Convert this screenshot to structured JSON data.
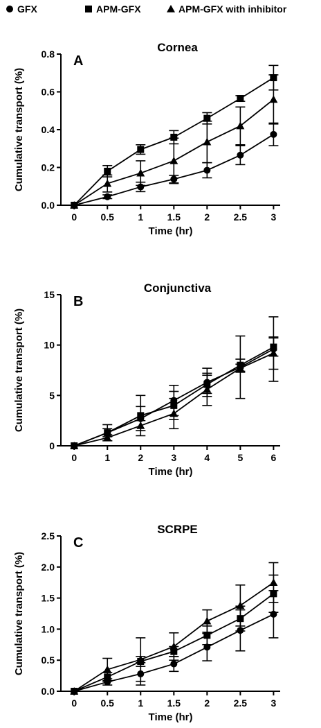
{
  "legend": {
    "placement": "top",
    "entries": [
      {
        "label": "GFX",
        "marker": "circle"
      },
      {
        "label": "APM-GFX",
        "marker": "square"
      },
      {
        "label": "APM-GFX with inhibitor",
        "marker": "triangle"
      }
    ]
  },
  "chart_data": [
    {
      "type": "line",
      "panel_letter": "A",
      "title": "Cornea",
      "xlabel": "Time (hr)",
      "ylabel": "Cumulative transport (%)",
      "x": [
        0,
        0.5,
        1,
        1.5,
        2,
        2.5,
        3
      ],
      "xticks": [
        0,
        0.5,
        1,
        1.5,
        2,
        2.5,
        3
      ],
      "xtick_labels": [
        "0",
        "0.5",
        "1",
        "1.5",
        "2",
        "2.5",
        "3"
      ],
      "xlim": [
        -0.2,
        3.1
      ],
      "ylim": [
        0,
        0.8
      ],
      "yticks": [
        0,
        0.2,
        0.4,
        0.6,
        0.8
      ],
      "ytick_labels": [
        "0.0",
        "0.2",
        "0.4",
        "0.6",
        "0.8"
      ],
      "grid": false,
      "series": [
        {
          "name": "GFX",
          "marker": "circle",
          "values": [
            0,
            0.045,
            0.097,
            0.138,
            0.185,
            0.265,
            0.375
          ],
          "errors": [
            0,
            0.01,
            0.025,
            0.02,
            0.04,
            0.05,
            0.06
          ]
        },
        {
          "name": "APM-GFX",
          "marker": "square",
          "values": [
            0,
            0.18,
            0.295,
            0.36,
            0.46,
            0.565,
            0.675
          ],
          "errors": [
            0,
            0.03,
            0.025,
            0.035,
            0.03,
            0.015,
            0.065
          ]
        },
        {
          "name": "APM-GFX with inhibitor",
          "marker": "triangle",
          "values": [
            0,
            0.115,
            0.17,
            0.235,
            0.335,
            0.42,
            0.56
          ],
          "errors": [
            0,
            0.045,
            0.065,
            0.12,
            0.11,
            0.1,
            0.13
          ]
        }
      ]
    },
    {
      "type": "line",
      "panel_letter": "B",
      "title": "Conjunctiva",
      "xlabel": "Time (hr)",
      "ylabel": "Cumulative transport (%)",
      "x": [
        0,
        1,
        2,
        3,
        4,
        5,
        6
      ],
      "xticks": [
        0,
        1,
        2,
        3,
        4,
        5,
        6
      ],
      "xtick_labels": [
        "0",
        "1",
        "2",
        "3",
        "4",
        "5",
        "6"
      ],
      "xlim": [
        -0.4,
        6.2
      ],
      "ylim": [
        0,
        15
      ],
      "yticks": [
        0,
        5,
        10,
        15
      ],
      "ytick_labels": [
        "0",
        "5",
        "10",
        "15"
      ],
      "grid": false,
      "series": [
        {
          "name": "GFX",
          "marker": "circle",
          "values": [
            0,
            1.3,
            2.7,
            4.5,
            6.3,
            7.8,
            9.6
          ],
          "errors": [
            0,
            0.8,
            1.2,
            1.5,
            1.4,
            3.1,
            3.2
          ]
        },
        {
          "name": "APM-GFX",
          "marker": "square",
          "values": [
            0,
            1.3,
            3.0,
            4.0,
            6.1,
            8.0,
            9.8
          ],
          "errors": [
            0,
            0.4,
            2.0,
            1.4,
            0.9,
            0.6,
            0.9
          ]
        },
        {
          "name": "APM-GFX with inhibitor",
          "marker": "triangle",
          "values": [
            0,
            0.8,
            2.0,
            3.2,
            5.6,
            7.7,
            9.2
          ],
          "errors": [
            0,
            0.3,
            0.5,
            1.5,
            1.6,
            0.4,
            1.6
          ]
        }
      ]
    },
    {
      "type": "line",
      "panel_letter": "C",
      "title": "SCRPE",
      "xlabel": "Time (hr)",
      "ylabel": "Cumulative transport (%)",
      "x": [
        0,
        0.5,
        1,
        1.5,
        2,
        2.5,
        3
      ],
      "xticks": [
        0,
        0.5,
        1,
        1.5,
        2,
        2.5,
        3
      ],
      "xtick_labels": [
        "0",
        "0.5",
        "1",
        "1.5",
        "2",
        "2.5",
        "3"
      ],
      "xlim": [
        -0.2,
        3.1
      ],
      "ylim": [
        0,
        2.5
      ],
      "yticks": [
        0,
        0.5,
        1.0,
        1.5,
        2.0,
        2.5
      ],
      "ytick_labels": [
        "0.0",
        "0.5",
        "1.0",
        "1.5",
        "2.0",
        "2.5"
      ],
      "grid": false,
      "series": [
        {
          "name": "GFX",
          "marker": "circle",
          "values": [
            0,
            0.15,
            0.28,
            0.44,
            0.71,
            0.98,
            1.24
          ],
          "errors": [
            0,
            0.05,
            0.18,
            0.12,
            0.22,
            0.33,
            0.38
          ]
        },
        {
          "name": "APM-GFX",
          "marker": "square",
          "values": [
            0,
            0.23,
            0.48,
            0.64,
            0.9,
            1.17,
            1.57
          ],
          "errors": [
            0,
            0.07,
            0.08,
            0.08,
            0.15,
            0.2,
            0.3
          ]
        },
        {
          "name": "APM-GFX with inhibitor",
          "marker": "triangle",
          "values": [
            0,
            0.35,
            0.51,
            0.72,
            1.13,
            1.38,
            1.75
          ],
          "errors": [
            0,
            0.18,
            0.35,
            0.22,
            0.18,
            0.33,
            0.32
          ]
        }
      ]
    }
  ]
}
